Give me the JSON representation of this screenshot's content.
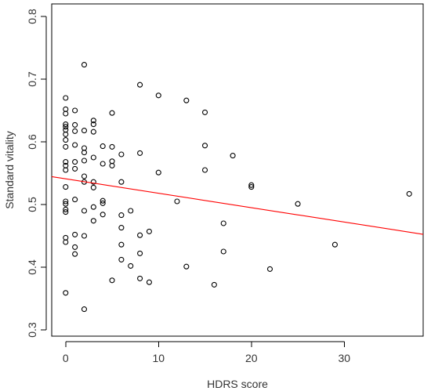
{
  "chart_data": {
    "type": "scatter",
    "title": "",
    "xlabel": "HDRS score",
    "ylabel": "Standard vitality",
    "xlim": [
      -1.5,
      38.5
    ],
    "ylim": [
      0.29,
      0.82
    ],
    "x_ticks": [
      0,
      10,
      20,
      30
    ],
    "y_ticks": [
      0.3,
      0.4,
      0.5,
      0.6,
      0.7,
      0.8
    ],
    "x_tick_labels": [
      "0",
      "10",
      "20",
      "30"
    ],
    "y_tick_labels": [
      "0.3",
      "0.4",
      "0.5",
      "0.6",
      "0.7",
      "0.8"
    ],
    "grid": false,
    "legend": "none",
    "colors": {
      "points": "#000000",
      "trend_line": "#ff0000",
      "axes": "#000000",
      "text": "#333333"
    },
    "series": [
      {
        "points": [
          [
            0,
            0.67
          ],
          [
            0,
            0.652
          ],
          [
            0,
            0.645
          ],
          [
            0,
            0.628
          ],
          [
            0,
            0.624
          ],
          [
            0,
            0.619
          ],
          [
            0,
            0.612
          ],
          [
            0,
            0.603
          ],
          [
            0,
            0.592
          ],
          [
            0,
            0.568
          ],
          [
            0,
            0.562
          ],
          [
            0,
            0.555
          ],
          [
            0,
            0.528
          ],
          [
            0,
            0.505
          ],
          [
            0,
            0.501
          ],
          [
            0,
            0.492
          ],
          [
            0,
            0.488
          ],
          [
            0,
            0.447
          ],
          [
            0,
            0.44
          ],
          [
            0,
            0.359
          ],
          [
            1,
            0.65
          ],
          [
            1,
            0.627
          ],
          [
            1,
            0.617
          ],
          [
            1,
            0.595
          ],
          [
            1,
            0.568
          ],
          [
            1,
            0.557
          ],
          [
            1,
            0.508
          ],
          [
            1,
            0.452
          ],
          [
            1,
            0.432
          ],
          [
            1,
            0.421
          ],
          [
            2,
            0.723
          ],
          [
            2,
            0.618
          ],
          [
            2,
            0.59
          ],
          [
            2,
            0.583
          ],
          [
            2,
            0.57
          ],
          [
            2,
            0.545
          ],
          [
            2,
            0.536
          ],
          [
            2,
            0.49
          ],
          [
            2,
            0.45
          ],
          [
            2,
            0.333
          ],
          [
            3,
            0.634
          ],
          [
            3,
            0.628
          ],
          [
            3,
            0.616
          ],
          [
            3,
            0.575
          ],
          [
            3,
            0.536
          ],
          [
            3,
            0.527
          ],
          [
            3,
            0.496
          ],
          [
            3,
            0.474
          ],
          [
            4,
            0.593
          ],
          [
            4,
            0.565
          ],
          [
            4,
            0.506
          ],
          [
            4,
            0.502
          ],
          [
            4,
            0.484
          ],
          [
            5,
            0.646
          ],
          [
            5,
            0.592
          ],
          [
            5,
            0.569
          ],
          [
            5,
            0.562
          ],
          [
            5,
            0.379
          ],
          [
            6,
            0.58
          ],
          [
            6,
            0.536
          ],
          [
            6,
            0.483
          ],
          [
            6,
            0.463
          ],
          [
            6,
            0.436
          ],
          [
            6,
            0.412
          ],
          [
            7,
            0.49
          ],
          [
            7,
            0.402
          ],
          [
            8,
            0.691
          ],
          [
            8,
            0.582
          ],
          [
            8,
            0.451
          ],
          [
            8,
            0.422
          ],
          [
            8,
            0.382
          ],
          [
            9,
            0.457
          ],
          [
            9,
            0.376
          ],
          [
            10,
            0.674
          ],
          [
            10,
            0.551
          ],
          [
            12,
            0.505
          ],
          [
            13,
            0.666
          ],
          [
            13,
            0.401
          ],
          [
            15,
            0.647
          ],
          [
            15,
            0.594
          ],
          [
            15,
            0.555
          ],
          [
            16,
            0.372
          ],
          [
            17,
            0.47
          ],
          [
            17,
            0.425
          ],
          [
            18,
            0.578
          ],
          [
            20,
            0.531
          ],
          [
            20,
            0.528
          ],
          [
            22,
            0.397
          ],
          [
            25,
            0.501
          ],
          [
            29,
            0.436
          ],
          [
            37,
            0.517
          ]
        ]
      }
    ],
    "fit_line": {
      "intercept": 0.541,
      "slope": -0.0023
    }
  }
}
